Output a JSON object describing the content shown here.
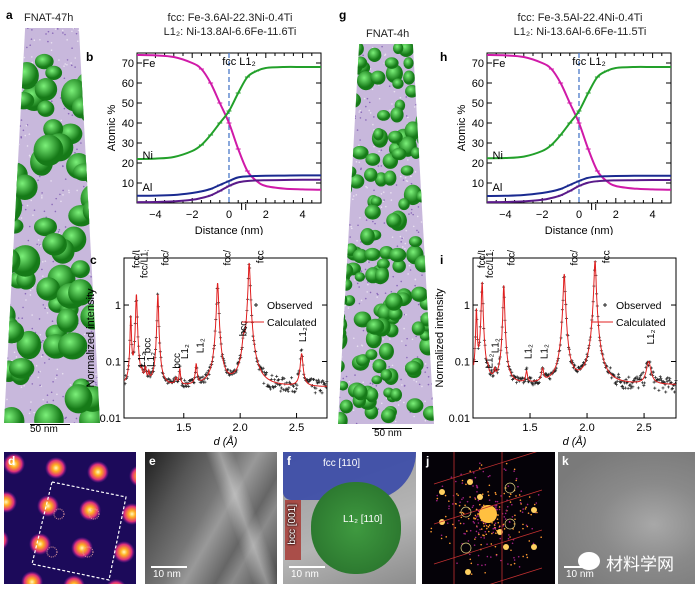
{
  "panels": {
    "a": {
      "label": "a",
      "title": "FNAT-47h",
      "scale_bar": "50 nm"
    },
    "g": {
      "label": "g",
      "title": "FNAT-4h",
      "scale_bar": "50 nm"
    },
    "b": {
      "label": "b",
      "title_line1": "fcc: Fe-3.6Al-22.3Ni-0.4Ti",
      "title_line2": "L1₂: Ni-13.8Al-6.6Fe-11.6Ti"
    },
    "h": {
      "label": "h",
      "title_line1": "fcc: Fe-3.5Al-22.4Ni-0.4Ti",
      "title_line2": "L1₂: Ni-13.6Al-6.6Fe-11.5Ti"
    },
    "c": {
      "label": "c"
    },
    "i": {
      "label": "i"
    },
    "d": {
      "label": "d"
    },
    "e": {
      "label": "e",
      "scale_bar": "10 nm"
    },
    "f": {
      "label": "f",
      "scale_bar": "10 nm",
      "fcc": "fcc [110]",
      "l12": "L1₂ [110]",
      "bcc": "bcc [001]"
    },
    "j": {
      "label": "j"
    },
    "k": {
      "label": "k",
      "scale_bar": "10 nm",
      "watermark": "材料学网"
    }
  },
  "chart_data": [
    {
      "id": "b",
      "type": "line",
      "xlabel": "Distance (nm)",
      "ylabel": "Atomic %",
      "xlim": [
        -5,
        5
      ],
      "ylim": [
        0,
        75
      ],
      "xticks": [
        -4,
        -2,
        0,
        2,
        4
      ],
      "yticks": [
        10,
        20,
        30,
        40,
        50,
        60,
        70
      ],
      "interface_label": "fcc  L1₂",
      "interface_x": 0,
      "x": [
        -5,
        -4,
        -3,
        -2,
        -1.5,
        -1,
        -0.5,
        0,
        0.5,
        1,
        1.5,
        2,
        3,
        4,
        5
      ],
      "series": [
        {
          "name": "Fe",
          "color": "#d01aa8",
          "values": [
            74,
            73.8,
            73,
            70,
            67,
            60,
            50,
            40,
            27,
            16,
            11,
            8.5,
            7.2,
            6.8,
            6.6
          ]
        },
        {
          "name": "Ni",
          "color": "#22a02a",
          "values": [
            22,
            22.2,
            23,
            26,
            29,
            34,
            40,
            46,
            55,
            63,
            66,
            67.5,
            68,
            68,
            68
          ]
        },
        {
          "name": "Al",
          "color": "#1a2a90",
          "values": [
            3.6,
            3.7,
            4,
            5,
            5.8,
            7,
            9,
            11,
            12.8,
            13.3,
            13.5,
            13.6,
            13.7,
            13.8,
            13.8
          ]
        },
        {
          "name": "Ti",
          "color": "#5a1a8a",
          "values": [
            0.4,
            0.5,
            0.8,
            1.6,
            2.5,
            3.8,
            6,
            8.5,
            10.3,
            11,
            11.3,
            11.4,
            11.5,
            11.6,
            11.6
          ]
        }
      ]
    },
    {
      "id": "h",
      "type": "line",
      "xlabel": "Distance (nm)",
      "ylabel": "Atomic %",
      "xlim": [
        -5,
        5
      ],
      "ylim": [
        0,
        75
      ],
      "xticks": [
        -4,
        -2,
        0,
        2,
        4
      ],
      "yticks": [
        10,
        20,
        30,
        40,
        50,
        60,
        70
      ],
      "interface_label": "fcc  L1₂",
      "interface_x": 0,
      "x": [
        -5,
        -4,
        -3,
        -2,
        -1.5,
        -1,
        -0.5,
        0,
        0.5,
        1,
        1.5,
        2,
        3,
        4,
        5
      ],
      "series": [
        {
          "name": "Fe",
          "color": "#d01aa8",
          "values": [
            74,
            73.8,
            73,
            70,
            67,
            60,
            50,
            40,
            27,
            16,
            11,
            8.5,
            7.2,
            6.8,
            6.6
          ]
        },
        {
          "name": "Ni",
          "color": "#22a02a",
          "values": [
            22.4,
            22.5,
            23.2,
            26,
            29,
            34,
            40,
            46,
            55,
            63,
            66,
            67.5,
            68,
            68,
            68
          ]
        },
        {
          "name": "Al",
          "color": "#1a2a90",
          "values": [
            3.5,
            3.6,
            4,
            5,
            5.8,
            7,
            9,
            11,
            12.6,
            13.2,
            13.4,
            13.5,
            13.6,
            13.6,
            13.6
          ]
        },
        {
          "name": "Ti",
          "color": "#5a1a8a",
          "values": [
            0.4,
            0.5,
            0.8,
            1.6,
            2.5,
            3.8,
            6,
            8.5,
            10.2,
            10.9,
            11.2,
            11.3,
            11.4,
            11.5,
            11.5
          ]
        }
      ]
    },
    {
      "id": "c",
      "type": "scatter",
      "xlabel": "d (Å)",
      "ylabel": "Normalized intensity",
      "yscale": "log",
      "xlim": [
        0.97,
        2.77
      ],
      "ylim": [
        0.01,
        6.8
      ],
      "xticks": [
        1.5,
        2.0,
        2.5
      ],
      "yticks": [
        0.01,
        0.1,
        1
      ],
      "ytick_labels": [
        "0.01",
        "0.1",
        "1"
      ],
      "xtick_labels": [
        "1.5",
        "2.0",
        "2.5"
      ],
      "legend": [
        "Observed",
        "Calculated"
      ],
      "legend_position": "right",
      "background": 0.035,
      "peaks": [
        [
          1.03,
          0.6,
          0.005
        ],
        [
          1.08,
          1.5,
          0.006
        ],
        [
          1.13,
          0.015,
          0.006
        ],
        [
          1.16,
          0.032,
          0.008
        ],
        [
          1.19,
          0.02,
          0.006
        ],
        [
          1.27,
          1.5,
          0.006
        ],
        [
          1.43,
          0.012,
          0.01
        ],
        [
          1.465,
          0.035,
          0.006
        ],
        [
          1.61,
          0.05,
          0.008
        ],
        [
          1.8,
          2.4,
          0.008
        ],
        [
          2.03,
          0.14,
          0.012
        ],
        [
          2.08,
          5.5,
          0.008
        ],
        [
          2.545,
          0.1,
          0.012
        ]
      ],
      "annotations": [
        {
          "text": "fcc/L1₂",
          "d": 1.07,
          "y": 4.5
        },
        {
          "text": "fcc/L1₂",
          "d": 1.145,
          "y": 3.0
        },
        {
          "text": "L1₂",
          "d": 1.12,
          "y": 0.08
        },
        {
          "text": "bcc",
          "d": 1.17,
          "y": 0.14
        },
        {
          "text": "L1₂",
          "d": 1.2,
          "y": 0.08
        },
        {
          "text": "fcc/L1₂",
          "d": 1.33,
          "y": 5.0
        },
        {
          "text": "bcc",
          "d": 1.43,
          "y": 0.075
        },
        {
          "text": "L1₂",
          "d": 1.5,
          "y": 0.11
        },
        {
          "text": "L1₂",
          "d": 1.64,
          "y": 0.14
        },
        {
          "text": "fcc/L1₂",
          "d": 1.88,
          "y": 5.0
        },
        {
          "text": "bcc",
          "d": 2.02,
          "y": 0.28
        },
        {
          "text": "fcc/L1₂",
          "d": 2.17,
          "y": 5.5
        },
        {
          "text": "L1₂",
          "d": 2.55,
          "y": 0.22
        }
      ]
    },
    {
      "id": "i",
      "type": "scatter",
      "xlabel": "d (Å)",
      "ylabel": "Normalized intensity",
      "yscale": "log",
      "xlim": [
        1.0,
        2.78
      ],
      "ylim": [
        0.01,
        6.8
      ],
      "xticks": [
        1.5,
        2.0,
        2.5
      ],
      "yticks": [
        0.01,
        0.1,
        1
      ],
      "ytick_labels": [
        "0.01",
        "0.1",
        "1"
      ],
      "xtick_labels": [
        "1.5",
        "2.0",
        "2.5"
      ],
      "legend": [
        "Observed",
        "Calculated"
      ],
      "legend_position": "right",
      "background": 0.038,
      "peaks": [
        [
          1.03,
          0.8,
          0.005
        ],
        [
          1.08,
          2.5,
          0.006
        ],
        [
          1.13,
          0.015,
          0.006
        ],
        [
          1.19,
          0.02,
          0.006
        ],
        [
          1.27,
          2.2,
          0.006
        ],
        [
          1.47,
          0.025,
          0.008
        ],
        [
          1.61,
          0.03,
          0.01
        ],
        [
          1.8,
          3.5,
          0.008
        ],
        [
          2.07,
          6.0,
          0.008
        ],
        [
          2.54,
          0.06,
          0.02
        ]
      ],
      "annotations": [
        {
          "text": "fcc/L1₂",
          "d": 1.07,
          "y": 4.5
        },
        {
          "text": "fcc/L1₂",
          "d": 1.14,
          "y": 3.0
        },
        {
          "text": "L1₂",
          "d": 1.135,
          "y": 0.075
        },
        {
          "text": "L1₂",
          "d": 1.19,
          "y": 0.14
        },
        {
          "text": "fcc/L1₂",
          "d": 1.33,
          "y": 5.0
        },
        {
          "text": "L1₂",
          "d": 1.48,
          "y": 0.11
        },
        {
          "text": "L1₂",
          "d": 1.62,
          "y": 0.11
        },
        {
          "text": "fcc/L1₂",
          "d": 1.88,
          "y": 5.0
        },
        {
          "text": "fcc/L1₂",
          "d": 2.16,
          "y": 5.5
        },
        {
          "text": "L1₂",
          "d": 2.55,
          "y": 0.2
        }
      ]
    }
  ]
}
